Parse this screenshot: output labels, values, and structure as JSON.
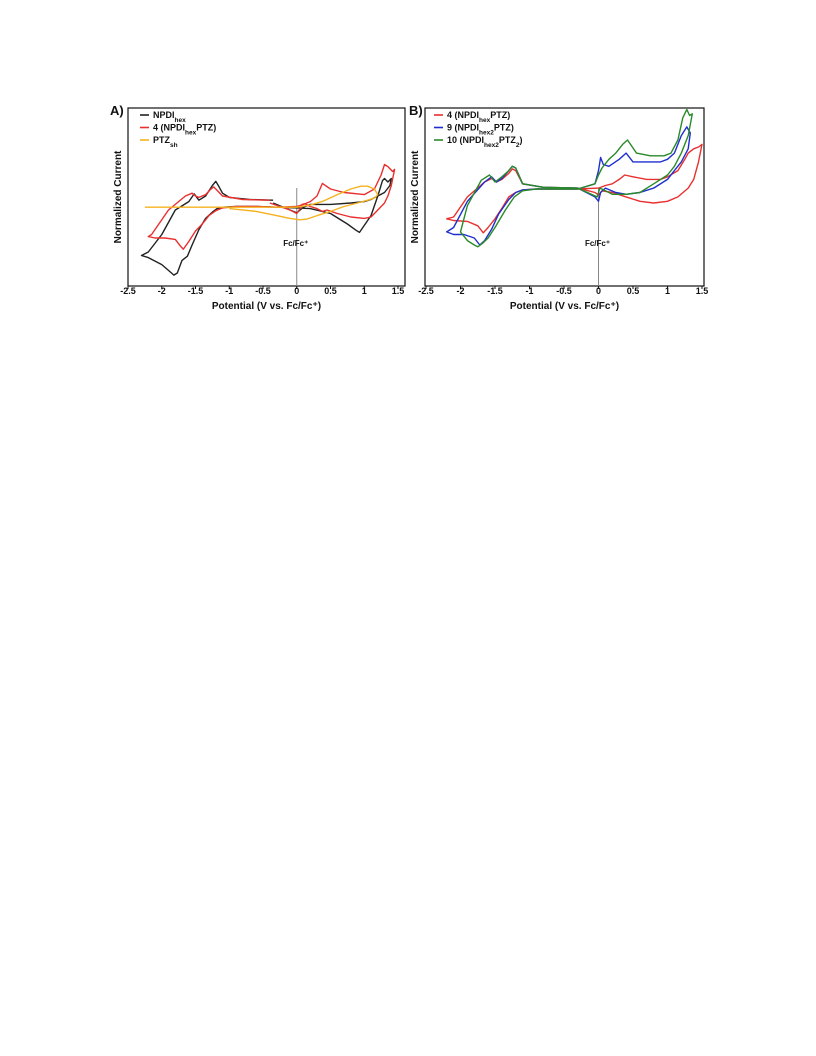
{
  "chart_data": [
    {
      "type": "line",
      "panel": "A)",
      "title": "",
      "xlabel": "Potential (V vs. Fc/Fc⁺)",
      "ylabel": "Normalized Current",
      "xlim": [
        -2.5,
        1.5
      ],
      "ylim": [
        -1,
        1
      ],
      "xticks": [
        "-2.5",
        "-2",
        "-1.5",
        "-1",
        "-0.5",
        "0",
        "0.5",
        "1",
        "1.5"
      ],
      "grid": false,
      "legend_position": "top-left",
      "reference_line": {
        "x": 0,
        "label": "Fc/Fc⁺"
      },
      "series": [
        {
          "name": "NPDIhex",
          "legend": {
            "text": "NPDI",
            "sub": "hex",
            "suffix": ""
          },
          "color": "#222222",
          "x": [
            -0.35,
            -0.7,
            -1.0,
            -1.1,
            -1.15,
            -1.2,
            -1.25,
            -1.35,
            -1.45,
            -1.52,
            -1.6,
            -1.8,
            -2.0,
            -2.2,
            -2.3,
            -2.2,
            -2.0,
            -1.88,
            -1.82,
            -1.77,
            -1.7,
            -1.62,
            -1.55,
            -1.45,
            -1.35,
            -1.25,
            -1.18,
            -1.1,
            -0.9,
            -0.6,
            -0.3,
            0.0,
            0.2,
            0.5,
            0.75,
            0.88,
            0.93,
            1.0,
            1.1,
            1.2,
            1.27,
            1.3,
            1.35,
            1.4,
            1.38,
            1.3,
            1.2,
            1.1,
            1.0,
            0.8,
            0.5,
            0.2,
            0.1,
            0.05,
            0.0,
            -0.1,
            -0.35
          ],
          "y": [
            0.14,
            0.15,
            0.18,
            0.24,
            0.33,
            0.41,
            0.35,
            0.2,
            0.14,
            0.23,
            0.12,
            0.0,
            -0.35,
            -0.6,
            -0.65,
            -0.68,
            -0.78,
            -0.88,
            -0.93,
            -0.9,
            -0.72,
            -0.66,
            -0.5,
            -0.28,
            -0.12,
            -0.03,
            0.02,
            0.04,
            0.05,
            0.05,
            0.04,
            0.03,
            0.02,
            -0.05,
            -0.2,
            -0.29,
            -0.32,
            -0.22,
            -0.08,
            0.2,
            0.42,
            0.45,
            0.4,
            0.45,
            0.35,
            0.25,
            0.2,
            0.15,
            0.12,
            0.1,
            0.08,
            0.08,
            0.04,
            0.0,
            -0.04,
            0.0,
            0.1
          ]
        },
        {
          "name": "4 (NPDIhexPTZ)",
          "legend": {
            "text": "4 (NPDI",
            "sub": "hex",
            "suffix": "PTZ)"
          },
          "color": "#e8302f",
          "x": [
            -0.4,
            -0.8,
            -1.1,
            -1.2,
            -1.23,
            -1.27,
            -1.35,
            -1.45,
            -1.5,
            -1.55,
            -1.65,
            -1.9,
            -2.15,
            -2.2,
            -2.1,
            -1.95,
            -1.8,
            -1.72,
            -1.68,
            -1.6,
            -1.5,
            -1.4,
            -1.3,
            -1.2,
            -1.1,
            -0.9,
            -0.6,
            -0.3,
            0.0,
            0.1,
            0.2,
            0.3,
            0.38,
            0.5,
            0.7,
            1.0,
            1.15,
            1.25,
            1.3,
            1.35,
            1.42,
            1.45,
            1.4,
            1.35,
            1.3,
            1.2,
            1.1,
            1.0,
            0.8,
            0.6,
            0.45,
            0.38,
            0.3,
            0.2,
            0.12,
            0.08,
            0.05,
            0.0,
            -0.1,
            -0.4
          ],
          "y": [
            0.14,
            0.15,
            0.2,
            0.3,
            0.33,
            0.3,
            0.22,
            0.18,
            0.2,
            0.24,
            0.2,
            0.0,
            -0.35,
            -0.38,
            -0.4,
            -0.4,
            -0.42,
            -0.52,
            -0.56,
            -0.45,
            -0.3,
            -0.2,
            -0.08,
            -0.01,
            0.03,
            0.05,
            0.05,
            0.04,
            0.05,
            0.08,
            0.12,
            0.2,
            0.38,
            0.3,
            0.25,
            0.22,
            0.3,
            0.5,
            0.65,
            0.62,
            0.55,
            0.58,
            0.35,
            0.2,
            0.1,
            0.0,
            -0.1,
            -0.12,
            -0.1,
            -0.05,
            0.0,
            -0.02,
            0.02,
            0.05,
            0.09,
            0.08,
            0.02,
            -0.05,
            0.0,
            0.1
          ]
        },
        {
          "name": "PTZsh",
          "legend": {
            "text": "PTZ",
            "sub": "sh",
            "suffix": ""
          },
          "color": "#f5b21e",
          "x": [
            -2.25,
            -1.5,
            -1.0,
            -0.5,
            -0.2,
            0.0,
            0.2,
            0.4,
            0.6,
            0.8,
            0.95,
            1.05,
            1.15,
            1.2,
            1.15,
            1.05,
            0.9,
            0.7,
            0.5,
            0.3,
            0.15,
            0.05,
            -0.1,
            -0.3,
            -0.6,
            -1.0
          ],
          "y": [
            0.04,
            0.04,
            0.04,
            0.04,
            0.04,
            0.04,
            0.07,
            0.13,
            0.22,
            0.3,
            0.34,
            0.34,
            0.3,
            0.22,
            0.17,
            0.14,
            0.1,
            0.05,
            -0.02,
            -0.08,
            -0.13,
            -0.14,
            -0.12,
            -0.08,
            -0.02,
            0.02
          ]
        }
      ]
    },
    {
      "type": "line",
      "panel": "B)",
      "title": "",
      "xlabel": "Potential (V vs. Fc/Fc⁺)",
      "ylabel": "Normalized Current",
      "xlim": [
        -2.5,
        1.5
      ],
      "ylim": [
        -1,
        1
      ],
      "xticks": [
        "-2.5",
        "-2",
        "-1.5",
        "-1",
        "-0.5",
        "0",
        "0.5",
        "1",
        "1.5"
      ],
      "grid": false,
      "legend_position": "top-left",
      "reference_line": {
        "x": 0,
        "label": "Fc/Fc⁺"
      },
      "series": [
        {
          "name": "4 (NPDIhexPTZ)",
          "legend": {
            "text": "4 (NPDI",
            "sub": "hex",
            "suffix": "PTZ)"
          },
          "color": "#e8302f",
          "x": [
            -0.3,
            -0.8,
            -1.1,
            -1.2,
            -1.25,
            -1.3,
            -1.4,
            -1.48,
            -1.55,
            -1.65,
            -1.9,
            -2.1,
            -2.2,
            -2.1,
            -1.9,
            -1.75,
            -1.67,
            -1.6,
            -1.5,
            -1.4,
            -1.3,
            -1.2,
            -1.1,
            -0.9,
            -0.6,
            -0.3,
            0.0,
            0.1,
            0.2,
            0.3,
            0.38,
            0.5,
            0.7,
            0.9,
            1.0,
            1.15,
            1.25,
            1.3,
            1.38,
            1.45,
            1.5,
            1.45,
            1.38,
            1.3,
            1.15,
            1.0,
            0.8,
            0.6,
            0.4,
            0.2,
            0.05,
            0.0,
            -0.05,
            -0.3
          ],
          "y": [
            0.05,
            0.06,
            0.1,
            0.25,
            0.27,
            0.22,
            0.15,
            0.12,
            0.16,
            0.12,
            -0.05,
            -0.28,
            -0.3,
            -0.32,
            -0.33,
            -0.38,
            -0.46,
            -0.4,
            -0.3,
            -0.18,
            -0.05,
            0.0,
            0.03,
            0.04,
            0.04,
            0.04,
            0.05,
            0.08,
            0.1,
            0.15,
            0.2,
            0.18,
            0.15,
            0.15,
            0.18,
            0.25,
            0.38,
            0.45,
            0.5,
            0.52,
            0.55,
            0.35,
            0.15,
            0.05,
            -0.05,
            -0.1,
            -0.12,
            -0.1,
            -0.05,
            0.0,
            0.02,
            -0.03,
            0.0,
            0.05
          ]
        },
        {
          "name": "9 (NPDIhex2PTZ)",
          "legend": {
            "text": "9 (NPDI",
            "sub": "hex2",
            "suffix": "PTZ)"
          },
          "color": "#1f2fcf",
          "x": [
            -0.3,
            -0.8,
            -1.1,
            -1.2,
            -1.25,
            -1.3,
            -1.4,
            -1.48,
            -1.55,
            -1.65,
            -1.9,
            -2.1,
            -2.2,
            -2.1,
            -1.95,
            -1.8,
            -1.72,
            -1.65,
            -1.55,
            -1.45,
            -1.3,
            -1.2,
            -1.1,
            -0.9,
            -0.6,
            -0.3,
            -0.05,
            0.0,
            0.03,
            0.07,
            0.15,
            0.3,
            0.4,
            0.5,
            0.7,
            0.9,
            1.0,
            1.1,
            1.2,
            1.28,
            1.33,
            1.3,
            1.2,
            1.1,
            1.0,
            0.8,
            0.6,
            0.4,
            0.25,
            0.1,
            0.03,
            0.0,
            -0.05,
            -0.3
          ],
          "y": [
            0.05,
            0.06,
            0.1,
            0.28,
            0.3,
            0.25,
            0.16,
            0.12,
            0.18,
            0.12,
            -0.1,
            -0.4,
            -0.45,
            -0.48,
            -0.48,
            -0.52,
            -0.6,
            -0.55,
            -0.42,
            -0.25,
            -0.08,
            0.0,
            0.03,
            0.04,
            0.04,
            0.04,
            0.1,
            0.25,
            0.4,
            0.32,
            0.3,
            0.38,
            0.45,
            0.35,
            0.35,
            0.35,
            0.38,
            0.45,
            0.65,
            0.75,
            0.68,
            0.5,
            0.35,
            0.25,
            0.15,
            0.05,
            0.0,
            -0.02,
            0.0,
            0.05,
            0.0,
            -0.1,
            -0.05,
            0.05
          ]
        },
        {
          "name": "10 (NPDIhex2PTZ2)",
          "legend": {
            "text": "10 (NPDI",
            "sub": "hex2",
            "suffix": "PTZ",
            "sub2": "2",
            "suffix2": ")"
          },
          "color": "#2a8a2a",
          "x": [
            -0.3,
            -0.8,
            -1.1,
            -1.2,
            -1.25,
            -1.3,
            -1.4,
            -1.5,
            -1.58,
            -1.7,
            -1.9,
            -2.0,
            -1.9,
            -1.8,
            -1.75,
            -1.68,
            -1.6,
            -1.5,
            -1.35,
            -1.22,
            -1.1,
            -0.9,
            -0.6,
            -0.3,
            -0.05,
            0.0,
            0.05,
            0.15,
            0.25,
            0.35,
            0.42,
            0.55,
            0.75,
            0.95,
            1.05,
            1.15,
            1.22,
            1.28,
            1.32,
            1.36,
            1.3,
            1.2,
            1.1,
            1.0,
            0.8,
            0.6,
            0.4,
            0.2,
            0.1,
            0.02,
            -0.02,
            -0.3
          ],
          "y": [
            0.05,
            0.06,
            0.1,
            0.28,
            0.3,
            0.25,
            0.18,
            0.12,
            0.2,
            0.14,
            -0.15,
            -0.45,
            -0.55,
            -0.6,
            -0.62,
            -0.58,
            -0.52,
            -0.4,
            -0.2,
            -0.05,
            0.02,
            0.04,
            0.04,
            0.04,
            0.1,
            0.2,
            0.28,
            0.38,
            0.45,
            0.55,
            0.6,
            0.45,
            0.42,
            0.42,
            0.45,
            0.6,
            0.85,
            0.95,
            0.88,
            0.9,
            0.65,
            0.45,
            0.3,
            0.2,
            0.1,
            0.0,
            -0.02,
            -0.02,
            0.02,
            0.05,
            -0.05,
            0.05
          ]
        }
      ]
    }
  ]
}
